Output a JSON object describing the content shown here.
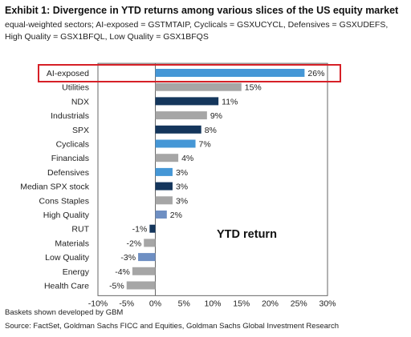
{
  "title": "Exhibit 1: Divergence in YTD returns among various slices of the US equity market",
  "subtitle": "equal-weighted sectors; AI-exposed = GSTMTAIP, Cyclicals = GSXUCYCL, Defensives = GSXUDEFS, High Quality = GSX1BFQL, Low Quality = GSX1BFQS",
  "note": "Baskets shown developed by GBM",
  "source": "Source: FactSet, Goldman Sachs FICC and Equities, Goldman Sachs Global Investment Research",
  "colors": {
    "navy": "#14365c",
    "blue": "#4597d6",
    "steel": "#6e8fc3",
    "gray": "#a6a6a6",
    "highlight": "#d62027"
  },
  "chart_data": {
    "type": "bar",
    "orientation": "horizontal",
    "annotation": "YTD return",
    "highlighted_category": "AI-exposed",
    "categories": [
      "AI-exposed",
      "Utilities",
      "NDX",
      "Industrials",
      "SPX",
      "Cyclicals",
      "Financials",
      "Defensives",
      "Median SPX stock",
      "Cons Staples",
      "High Quality",
      "RUT",
      "Materials",
      "Low Quality",
      "Energy",
      "Health Care"
    ],
    "values": [
      26,
      15,
      11,
      9,
      8,
      7,
      4,
      3,
      3,
      3,
      2,
      -1,
      -2,
      -3,
      -4,
      -5
    ],
    "value_labels": [
      "26%",
      "15%",
      "11%",
      "9%",
      "8%",
      "7%",
      "4%",
      "3%",
      "3%",
      "3%",
      "2%",
      "-1%",
      "-2%",
      "-3%",
      "-4%",
      "-5%"
    ],
    "bar_colors": [
      "blue",
      "gray",
      "navy",
      "gray",
      "navy",
      "blue",
      "gray",
      "blue",
      "navy",
      "gray",
      "steel",
      "navy",
      "gray",
      "steel",
      "gray",
      "gray"
    ],
    "xlim": [
      -10,
      30
    ],
    "xticks": [
      -10,
      -5,
      0,
      5,
      10,
      15,
      20,
      25,
      30
    ],
    "xtick_labels": [
      "-10%",
      "-5%",
      "0%",
      "5%",
      "10%",
      "15%",
      "20%",
      "25%",
      "30%"
    ],
    "xlabel": "",
    "ylabel": "",
    "grid": false,
    "legend": "none"
  }
}
